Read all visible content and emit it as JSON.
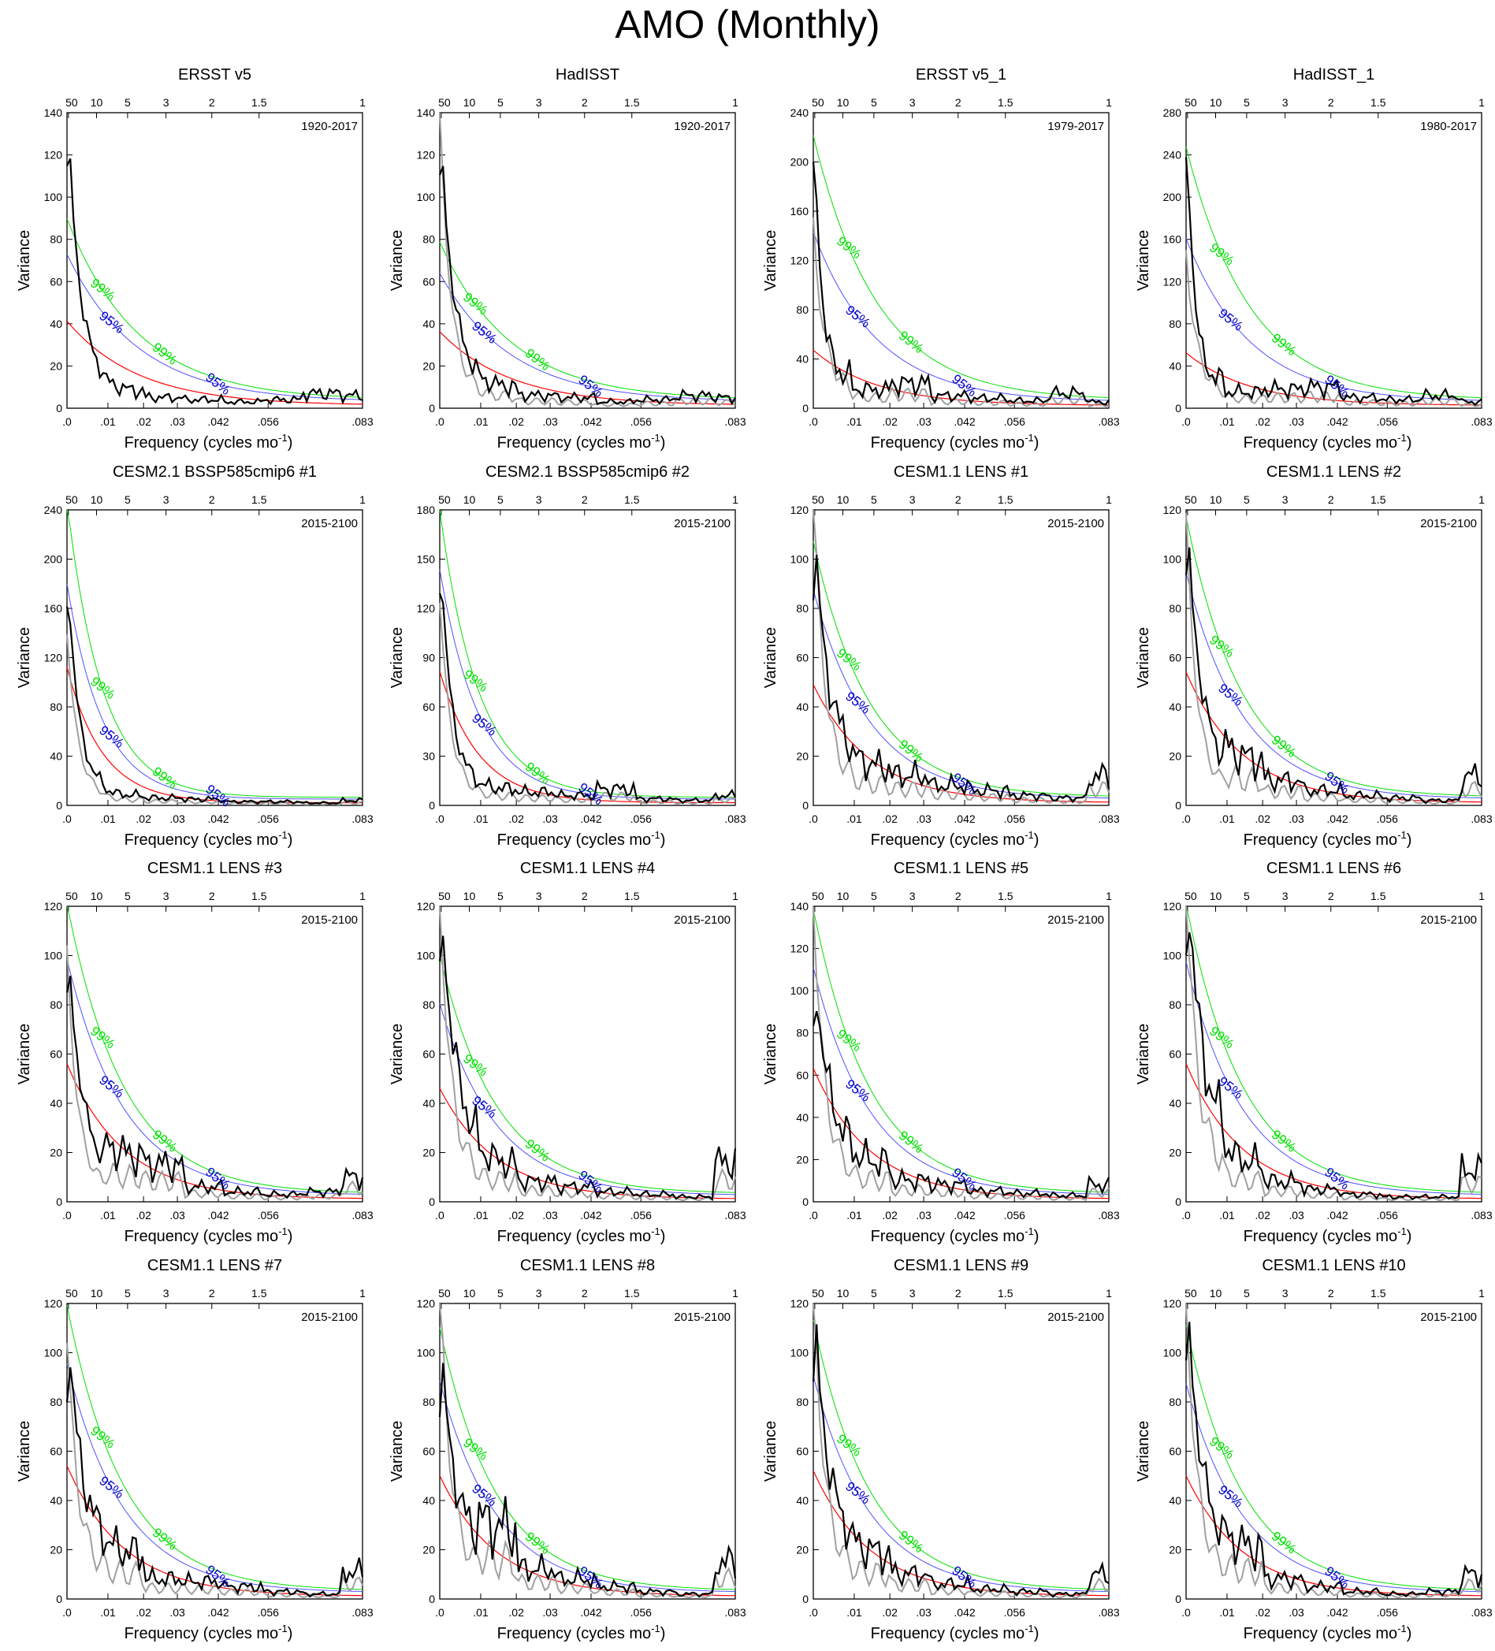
{
  "figure_title": "AMO (Monthly)",
  "colors": {
    "spectrum": "#000000",
    "reference": "#a0a0a0",
    "red_noise": "#ff0000",
    "ci95": "#5050ff",
    "ci99": "#00e000",
    "ci95_label": "#0000c8",
    "ci99_label": "#00e000"
  },
  "common": {
    "xlabel": "Frequency (cycles mo",
    "xlabel_sup": "-1",
    "ylabel": "Variance",
    "x_bottom_ticks": [
      ".01",
      ".02",
      ".03",
      ".042",
      ".056",
      ".083"
    ],
    "x_bottom_values": [
      0.0115,
      0.0215,
      0.031,
      0.0425,
      0.0565,
      0.083
    ],
    "x_origin_label": ".0",
    "x_top_ticks": [
      "50",
      "10",
      "5",
      "3",
      "2",
      "1.5",
      "1"
    ],
    "xlim": [
      0,
      0.083
    ],
    "ci95_text": "95%",
    "ci99_text": "99%"
  },
  "chart_data": [
    {
      "type": "line",
      "title": "ERSST v5",
      "period": "1920-2017",
      "ylim": [
        0,
        140
      ],
      "yticks": [
        0,
        20,
        40,
        60,
        80,
        100,
        120,
        140
      ],
      "spec_amp": 135,
      "spec_decay": 0.0035,
      "spec_tail": [
        10,
        8,
        5,
        4,
        3,
        4,
        7,
        6
      ],
      "ref_amp": 0,
      "red_start": 40,
      "ci95_start": 70,
      "ci99_start": 86,
      "decay": 0.02
    },
    {
      "type": "line",
      "title": "HadISST",
      "period": "1920-2017",
      "ylim": [
        0,
        140
      ],
      "yticks": [
        0,
        20,
        40,
        60,
        80,
        100,
        120,
        140
      ],
      "spec_amp": 130,
      "spec_decay": 0.0035,
      "spec_tail": [
        12,
        10,
        6,
        5,
        3,
        4,
        6,
        5
      ],
      "ref_amp": 135,
      "red_start": 35,
      "ci95_start": 61,
      "ci99_start": 75,
      "decay": 0.02
    },
    {
      "type": "line",
      "title": "ERSST v5_1",
      "period": "1979-2017",
      "ylim": [
        0,
        240
      ],
      "yticks": [
        0,
        40,
        80,
        120,
        160,
        200,
        240
      ],
      "spec_amp": 235,
      "spec_decay": 0.002,
      "spec_tail": [
        25,
        15,
        20,
        10,
        8,
        6,
        12,
        5
      ],
      "ref_amp": 135,
      "red_start": 45,
      "ci95_start": 138,
      "ci99_start": 215,
      "decay": 0.018
    },
    {
      "type": "line",
      "title": "HadISST_1",
      "period": "1980-2017",
      "ylim": [
        0,
        280
      ],
      "yticks": [
        0,
        40,
        80,
        120,
        160,
        200,
        240,
        280
      ],
      "spec_amp": 280,
      "spec_decay": 0.002,
      "spec_tail": [
        25,
        15,
        18,
        20,
        10,
        8,
        12,
        6
      ],
      "ref_amp": 135,
      "red_start": 50,
      "ci95_start": 155,
      "ci99_start": 240,
      "decay": 0.018
    },
    {
      "type": "line",
      "title": "CESM2.1 BSSP585cmip6 #1",
      "period": "2015-2100",
      "ylim": [
        0,
        240
      ],
      "yticks": [
        0,
        40,
        80,
        120,
        160,
        200,
        240
      ],
      "spec_amp": 190,
      "spec_decay": 0.003,
      "spec_tail": [
        12,
        8,
        6,
        5,
        3,
        3,
        2,
        4
      ],
      "ref_amp": 135,
      "red_start": 110,
      "ci95_start": 175,
      "ci99_start": 240,
      "decay": 0.01
    },
    {
      "type": "line",
      "title": "CESM2.1 BSSP585cmip6 #2",
      "period": "2015-2100",
      "ylim": [
        0,
        180
      ],
      "yticks": [
        0,
        30,
        60,
        90,
        120,
        150,
        180
      ],
      "spec_amp": 152,
      "spec_decay": 0.003,
      "spec_tail": [
        12,
        10,
        8,
        6,
        10,
        4,
        3,
        6
      ],
      "ref_amp": 120,
      "red_start": 80,
      "ci95_start": 140,
      "ci99_start": 175,
      "decay": 0.011
    },
    {
      "type": "line",
      "title": "CESM1.1 LENS #1",
      "period": "2015-2100",
      "ylim": [
        0,
        120
      ],
      "yticks": [
        0,
        20,
        40,
        60,
        80,
        100,
        120
      ],
      "spec_amp": 98,
      "spec_decay": 0.004,
      "spec_tail": [
        18,
        15,
        12,
        8,
        6,
        4,
        3,
        12
      ],
      "ref_amp": 120,
      "red_start": 48,
      "ci95_start": 85,
      "ci99_start": 104,
      "decay": 0.016
    },
    {
      "type": "line",
      "title": "CESM1.1 LENS #2",
      "period": "2015-2100",
      "ylim": [
        0,
        120
      ],
      "yticks": [
        0,
        20,
        40,
        60,
        80,
        100,
        120
      ],
      "spec_amp": 110,
      "spec_decay": 0.004,
      "spec_tail": [
        12,
        18,
        10,
        6,
        4,
        3,
        2,
        12
      ],
      "ref_amp": 110,
      "red_start": 53,
      "ci95_start": 92,
      "ci99_start": 114,
      "decay": 0.016
    },
    {
      "type": "line",
      "title": "CESM1.1 LENS #3",
      "period": "2015-2100",
      "ylim": [
        0,
        120
      ],
      "yticks": [
        0,
        20,
        40,
        60,
        80,
        100,
        120
      ],
      "spec_amp": 100,
      "spec_decay": 0.004,
      "spec_tail": [
        10,
        18,
        15,
        6,
        4,
        3,
        4,
        10
      ],
      "ref_amp": 96,
      "red_start": 55,
      "ci95_start": 96,
      "ci99_start": 118,
      "decay": 0.016
    },
    {
      "type": "line",
      "title": "CESM1.1 LENS #4",
      "period": "2015-2100",
      "ylim": [
        0,
        120
      ],
      "yticks": [
        0,
        20,
        40,
        60,
        80,
        100,
        120
      ],
      "spec_amp": 115,
      "spec_decay": 0.004,
      "spec_tail": [
        20,
        15,
        8,
        6,
        4,
        3,
        2,
        16
      ],
      "ref_amp": 118,
      "red_start": 45,
      "ci95_start": 78,
      "ci99_start": 97,
      "decay": 0.016
    },
    {
      "type": "line",
      "title": "CESM1.1 LENS #5",
      "period": "2015-2100",
      "ylim": [
        0,
        140
      ],
      "yticks": [
        0,
        20,
        40,
        60,
        80,
        100,
        120,
        140
      ],
      "spec_amp": 98,
      "spec_decay": 0.004,
      "spec_tail": [
        22,
        18,
        10,
        8,
        5,
        4,
        3,
        8
      ],
      "ref_amp": 135,
      "red_start": 62,
      "ci95_start": 108,
      "ci99_start": 135,
      "decay": 0.016
    },
    {
      "type": "line",
      "title": "CESM1.1 LENS #6",
      "period": "2015-2100",
      "ylim": [
        0,
        120
      ],
      "yticks": [
        0,
        20,
        40,
        60,
        80,
        100,
        120
      ],
      "spec_amp": 118,
      "spec_decay": 0.004,
      "spec_tail": [
        25,
        15,
        8,
        5,
        3,
        2,
        2,
        13
      ],
      "ref_amp": 118,
      "red_start": 55,
      "ci95_start": 95,
      "ci99_start": 118,
      "decay": 0.016
    },
    {
      "type": "line",
      "title": "CESM1.1 LENS #7",
      "period": "2015-2100",
      "ylim": [
        0,
        120
      ],
      "yticks": [
        0,
        20,
        40,
        60,
        80,
        100,
        120
      ],
      "spec_amp": 94,
      "spec_decay": 0.004,
      "spec_tail": [
        20,
        18,
        8,
        7,
        5,
        3,
        2,
        11
      ],
      "ref_amp": 96,
      "red_start": 53,
      "ci95_start": 93,
      "ci99_start": 116,
      "decay": 0.016
    },
    {
      "type": "line",
      "title": "CESM1.1 LENS #8",
      "period": "2015-2100",
      "ylim": [
        0,
        120
      ],
      "yticks": [
        0,
        20,
        40,
        60,
        80,
        100,
        120
      ],
      "spec_amp": 87,
      "spec_decay": 0.004,
      "spec_tail": [
        20,
        28,
        12,
        8,
        5,
        3,
        2,
        15
      ],
      "ref_amp": 120,
      "red_start": 49,
      "ci95_start": 86,
      "ci99_start": 107,
      "decay": 0.016
    },
    {
      "type": "line",
      "title": "CESM1.1 LENS #9",
      "period": "2015-2100",
      "ylim": [
        0,
        120
      ],
      "yticks": [
        0,
        20,
        40,
        60,
        80,
        100,
        120
      ],
      "spec_amp": 104,
      "spec_decay": 0.004,
      "spec_tail": [
        20,
        18,
        10,
        6,
        4,
        3,
        2,
        10
      ],
      "ref_amp": 120,
      "red_start": 51,
      "ci95_start": 88,
      "ci99_start": 110,
      "decay": 0.016
    },
    {
      "type": "line",
      "title": "CESM1.1 LENS #10",
      "period": "2015-2100",
      "ylim": [
        0,
        120
      ],
      "yticks": [
        0,
        20,
        40,
        60,
        80,
        100,
        120
      ],
      "spec_amp": 114,
      "spec_decay": 0.004,
      "spec_tail": [
        18,
        20,
        8,
        5,
        3,
        2,
        3,
        10
      ],
      "ref_amp": 116,
      "red_start": 49,
      "ci95_start": 85,
      "ci99_start": 108,
      "decay": 0.016
    }
  ]
}
